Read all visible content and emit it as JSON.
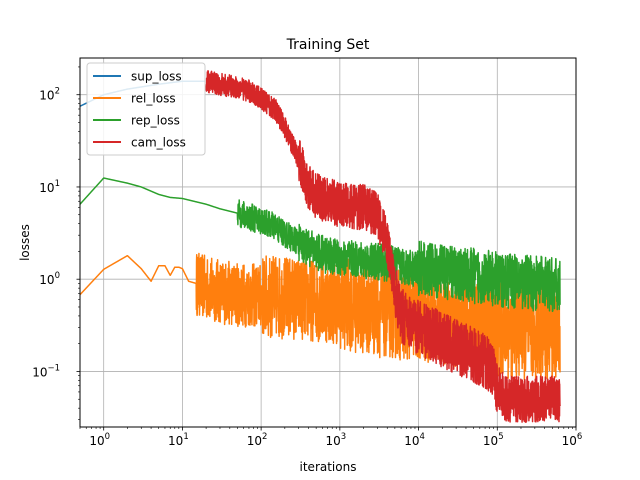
{
  "chart_data": {
    "type": "line",
    "title": "Training Set",
    "xlabel": "iterations",
    "ylabel": "losses",
    "xscale": "log",
    "yscale": "log",
    "xlim": [
      0.5,
      1000000
    ],
    "ylim": [
      0.025,
      250
    ],
    "grid": true,
    "legend": "top-left",
    "x_ticks": [
      {
        "value": 1,
        "base": "10",
        "exp": "0"
      },
      {
        "value": 10,
        "base": "10",
        "exp": "1"
      },
      {
        "value": 100,
        "base": "10",
        "exp": "2"
      },
      {
        "value": 1000,
        "base": "10",
        "exp": "3"
      },
      {
        "value": 10000,
        "base": "10",
        "exp": "4"
      },
      {
        "value": 100000,
        "base": "10",
        "exp": "5"
      },
      {
        "value": 1000000,
        "base": "10",
        "exp": "6"
      }
    ],
    "y_ticks": [
      {
        "value": 0.1,
        "base": "10",
        "exp": "−1"
      },
      {
        "value": 1,
        "base": "10",
        "exp": "0"
      },
      {
        "value": 10,
        "base": "10",
        "exp": "1"
      },
      {
        "value": 100,
        "base": "10",
        "exp": "2"
      }
    ],
    "series": [
      {
        "name": "sup_loss",
        "color": "#1f77b4",
        "points": [
          [
            0.5,
            75
          ],
          [
            1,
            100
          ],
          [
            2,
            115
          ],
          [
            5,
            130
          ],
          [
            10,
            140
          ],
          [
            20,
            140
          ]
        ],
        "noise": []
      },
      {
        "name": "rel_loss",
        "color": "#ff7f0e",
        "points": [
          [
            0.5,
            0.68
          ],
          [
            1,
            1.28
          ],
          [
            2,
            1.8
          ],
          [
            3,
            1.3
          ],
          [
            4,
            0.95
          ],
          [
            5,
            1.4
          ],
          [
            6,
            1.4
          ],
          [
            7,
            1.1
          ],
          [
            8,
            1.35
          ],
          [
            9,
            1.35
          ],
          [
            10,
            1.3
          ],
          [
            12,
            0.95
          ],
          [
            15,
            0.9
          ],
          [
            20,
            0.8
          ],
          [
            40,
            0.7
          ],
          [
            100,
            0.65
          ],
          [
            300,
            0.62
          ],
          [
            1000,
            0.55
          ],
          [
            3000,
            0.45
          ],
          [
            10000,
            0.4
          ],
          [
            30000,
            0.35
          ],
          [
            100000,
            0.3
          ],
          [
            300000,
            0.28
          ],
          [
            630000,
            0.28
          ]
        ],
        "noise": [
          [
            15,
            100,
            0.35
          ],
          [
            100,
            1000,
            0.45
          ],
          [
            1000,
            100000,
            0.5
          ],
          [
            100000,
            630000,
            0.55
          ]
        ]
      },
      {
        "name": "rep_loss",
        "color": "#2ca02c",
        "points": [
          [
            0.5,
            6.5
          ],
          [
            1,
            12.5
          ],
          [
            2,
            11
          ],
          [
            3,
            10
          ],
          [
            5,
            8.3
          ],
          [
            7,
            7.7
          ],
          [
            10,
            7.5
          ],
          [
            20,
            6.5
          ],
          [
            30,
            5.8
          ],
          [
            50,
            5.2
          ],
          [
            100,
            4.3
          ],
          [
            150,
            3.7
          ],
          [
            200,
            3.1
          ],
          [
            300,
            2.5
          ],
          [
            500,
            2.0
          ],
          [
            700,
            1.8
          ],
          [
            1000,
            1.7
          ],
          [
            3000,
            1.55
          ],
          [
            10000,
            1.3
          ],
          [
            30000,
            1.15
          ],
          [
            100000,
            1.0
          ],
          [
            300000,
            0.9
          ],
          [
            630000,
            0.85
          ]
        ],
        "noise": [
          [
            50,
            300,
            0.15
          ],
          [
            300,
            10000,
            0.2
          ],
          [
            10000,
            630000,
            0.3
          ]
        ]
      },
      {
        "name": "cam_loss",
        "color": "#d62728",
        "points": [
          [
            20,
            140
          ],
          [
            30,
            130
          ],
          [
            50,
            120
          ],
          [
            70,
            110
          ],
          [
            100,
            90
          ],
          [
            150,
            70
          ],
          [
            200,
            45
          ],
          [
            300,
            20
          ],
          [
            400,
            10
          ],
          [
            500,
            8
          ],
          [
            700,
            7
          ],
          [
            1000,
            6.5
          ],
          [
            2000,
            6
          ],
          [
            3000,
            5
          ],
          [
            4000,
            2.5
          ],
          [
            5000,
            0.8
          ],
          [
            6000,
            0.4
          ],
          [
            10000,
            0.3
          ],
          [
            20000,
            0.22
          ],
          [
            50000,
            0.15
          ],
          [
            80000,
            0.12
          ],
          [
            100000,
            0.07
          ],
          [
            130000,
            0.05
          ],
          [
            200000,
            0.05
          ],
          [
            630000,
            0.05
          ]
        ],
        "noise": [
          [
            20,
            300,
            0.12
          ],
          [
            300,
            5000,
            0.25
          ],
          [
            5000,
            100000,
            0.3
          ],
          [
            100000,
            630000,
            0.25
          ]
        ]
      }
    ]
  }
}
